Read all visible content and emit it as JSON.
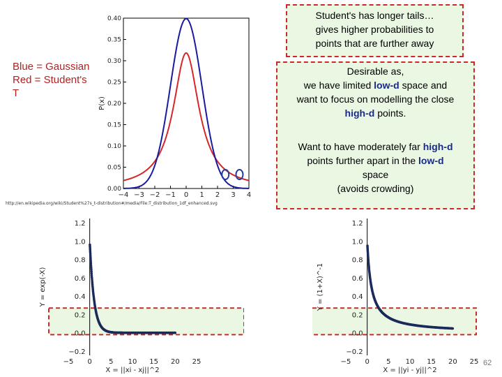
{
  "legend": {
    "line1": "Blue = Gaussian",
    "line2": "Red = Student's",
    "line3": "T"
  },
  "callout_top": {
    "l1": "Student's has longer tails…",
    "l2": "gives higher probabilities to",
    "l3": "points that are further away"
  },
  "callout_mid": {
    "l1": "Desirable as,",
    "l2a": "we have limited ",
    "l2b": "low-d",
    "l2c": " space and",
    "l3": "want to focus on modelling the close",
    "l4a": "high-d",
    "l4b": " points.",
    "l5a": "Want to have moderately far ",
    "l5b": "high-d",
    "l6a": "points further apart in the ",
    "l6b": "low-d",
    "l7": "space",
    "l8": "(avoids crowding)"
  },
  "source_url": "http://en.wikipedia.org/wiki/Student%27s_t-distribution#/media/File:T_distribution_1df_enhanced.svg",
  "page_number": "62",
  "colors": {
    "gaussian": "#1a1aa0",
    "student_t": "#d62728",
    "callout_border": "#cc2a2a",
    "callout_fill": "#e9f7e3",
    "curve": "#1b2a5a"
  },
  "chart_data": [
    {
      "type": "line",
      "ylabel": "P(x)",
      "xlim": [
        -4,
        4
      ],
      "ylim": [
        0,
        0.4
      ],
      "x_ticks": [
        "−4",
        "−3",
        "−2",
        "−1",
        "0",
        "1",
        "2",
        "3",
        "4"
      ],
      "y_ticks": [
        "0.00",
        "0.05",
        "0.10",
        "0.15",
        "0.20",
        "0.25",
        "0.30",
        "0.35",
        "0.40"
      ],
      "series": [
        {
          "name": "Gaussian",
          "function": "normal_pdf",
          "peak": 0.399
        },
        {
          "name": "Student's T",
          "function": "student_t_pdf_1df",
          "peak": 0.318
        }
      ],
      "markers": [
        2.5,
        3.4
      ]
    },
    {
      "type": "scatter",
      "xlabel": "X = ||xi - xj||^2",
      "ylabel": "Y = exp(-X)",
      "xlim": [
        -5,
        25
      ],
      "ylim": [
        -0.2,
        1.2
      ],
      "x_ticks": [
        "−5",
        "0",
        "5",
        "10",
        "15",
        "20",
        "25"
      ],
      "y_ticks": [
        "1.2",
        "1.0",
        "0.8",
        "0.6",
        "0.4",
        "0.2",
        "0.0",
        "−0.2"
      ],
      "x_range": [
        0,
        20
      ],
      "function": "exp(-x)"
    },
    {
      "type": "scatter",
      "xlabel": "X = ||yi - yj||^2",
      "ylabel": "Y = (1+X)^-1",
      "xlim": [
        -5,
        25
      ],
      "ylim": [
        -0.2,
        1.2
      ],
      "x_ticks": [
        "−5",
        "0",
        "5",
        "10",
        "15",
        "20",
        "25"
      ],
      "y_ticks": [
        "1.2",
        "1.0",
        "0.8",
        "0.6",
        "0.4",
        "0.2",
        "0.0",
        "−0.2"
      ],
      "x_range": [
        0,
        20
      ],
      "function": "1/(1+x)"
    }
  ]
}
